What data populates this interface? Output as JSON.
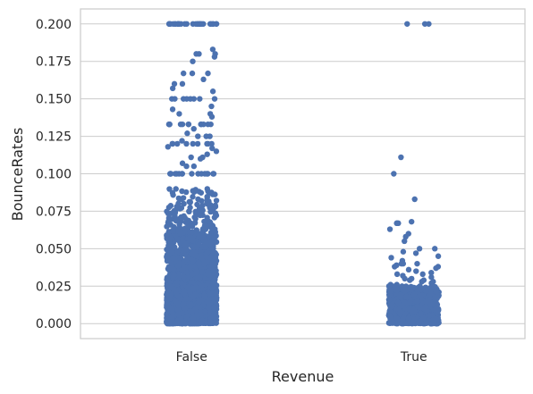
{
  "chart_data": {
    "type": "scatter",
    "subtype": "strip",
    "title": "",
    "xlabel": "Revenue",
    "ylabel": "BounceRates",
    "categories": [
      "False",
      "True"
    ],
    "ylim": [
      -0.01,
      0.21
    ],
    "yticks": [
      "0.000",
      "0.025",
      "0.050",
      "0.075",
      "0.100",
      "0.125",
      "0.150",
      "0.175",
      "0.200"
    ],
    "grid": "horizontal",
    "point_color": "#4c72b0",
    "series": [
      {
        "category": "False",
        "values": [
          0.2,
          0.2,
          0.2,
          0.2,
          0.2,
          0.2,
          0.2,
          0.2,
          0.2,
          0.2,
          0.2,
          0.2,
          0.2,
          0.2,
          0.2,
          0.2,
          0.2,
          0.2,
          0.2,
          0.2,
          0.2,
          0.2,
          0.2,
          0.2,
          0.2,
          0.2,
          0.2,
          0.2,
          0.2,
          0.2,
          0.183,
          0.18,
          0.18,
          0.18,
          0.175,
          0.178,
          0.167,
          0.167,
          0.167,
          0.163,
          0.16,
          0.16,
          0.157,
          0.155,
          0.15,
          0.15,
          0.15,
          0.15,
          0.15,
          0.15,
          0.15,
          0.15,
          0.145,
          0.143,
          0.14,
          0.14,
          0.138,
          0.133,
          0.133,
          0.133,
          0.133,
          0.133,
          0.133,
          0.133,
          0.133,
          0.133,
          0.133,
          0.133,
          0.133,
          0.133,
          0.13,
          0.127,
          0.125,
          0.125,
          0.125,
          0.122,
          0.12,
          0.12,
          0.12,
          0.12,
          0.12,
          0.12,
          0.12,
          0.12,
          0.12,
          0.118,
          0.117,
          0.115,
          0.113,
          0.111,
          0.111,
          0.11,
          0.107,
          0.105,
          0.105,
          0.1,
          0.1,
          0.1,
          0.1,
          0.1,
          0.1,
          0.1,
          0.1,
          0.1,
          0.1,
          0.1,
          0.1,
          0.1,
          0.1,
          0.1,
          0.1
        ],
        "dense_bands": [
          {
            "min": 0.0,
            "max": 0.03,
            "count": 1100
          },
          {
            "min": 0.03,
            "max": 0.06,
            "count": 480
          },
          {
            "min": 0.06,
            "max": 0.09,
            "count": 160
          }
        ]
      },
      {
        "category": "True",
        "values": [
          0.2,
          0.2,
          0.2,
          0.111,
          0.1,
          0.083,
          0.068,
          0.067,
          0.067,
          0.067,
          0.063,
          0.06,
          0.058,
          0.055,
          0.05,
          0.05,
          0.048,
          0.047,
          0.045,
          0.044,
          0.042,
          0.04,
          0.04,
          0.04,
          0.039,
          0.038,
          0.038,
          0.037,
          0.036,
          0.035,
          0.034,
          0.033,
          0.033,
          0.032,
          0.031,
          0.03,
          0.03,
          0.029,
          0.029,
          0.028,
          0.028,
          0.027,
          0.026,
          0.026,
          0.025
        ],
        "dense_bands": [
          {
            "min": 0.0,
            "max": 0.025,
            "count": 850
          }
        ]
      }
    ]
  }
}
